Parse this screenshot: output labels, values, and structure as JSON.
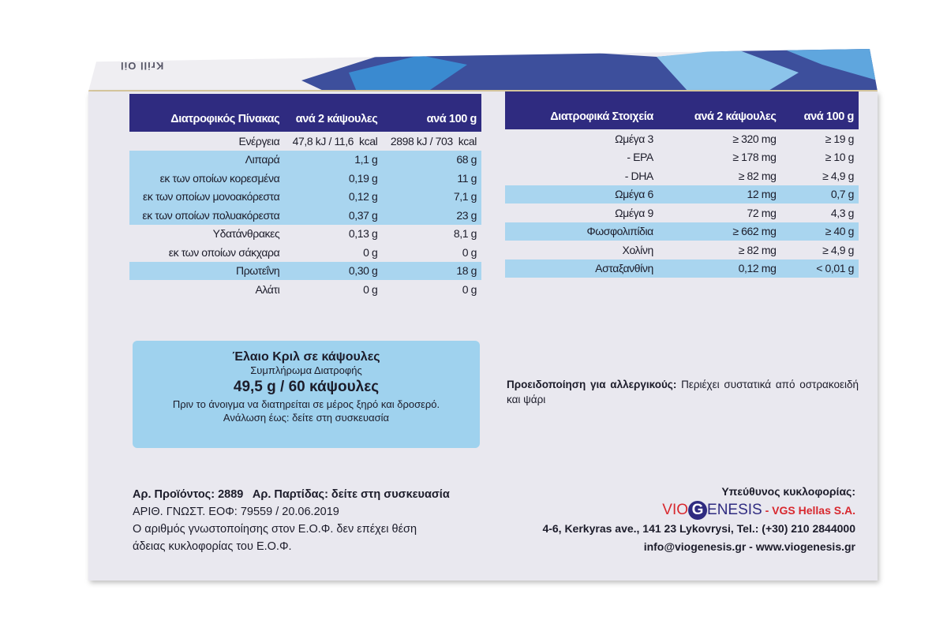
{
  "lid": {
    "brand": "Krill Oil"
  },
  "nutrition": {
    "headers": [
      "Διατροφικός Πίνακας",
      "ανά 2 κάψουλες",
      "ανά 100 g"
    ],
    "rows": [
      {
        "label": "Ενέργεια",
        "per2": "47,8 kJ / 11,6  kcal",
        "per100": "2898 kJ / 703  kcal",
        "hl": false
      },
      {
        "label": "Λιπαρά",
        "per2": "1,1 g",
        "per100": "68 g",
        "hl": true
      },
      {
        "label": "εκ των οποίων κορεσμένα",
        "per2": "0,19 g",
        "per100": "11 g",
        "hl": true
      },
      {
        "label": "εκ των οποίων μονοακόρεστα",
        "per2": "0,12 g",
        "per100": "7,1 g",
        "hl": true
      },
      {
        "label": "εκ των οποίων πολυακόρεστα",
        "per2": "0,37 g",
        "per100": "23 g",
        "hl": true
      },
      {
        "label": "Υδατάνθρακες",
        "per2": "0,13 g",
        "per100": "8,1 g",
        "hl": false
      },
      {
        "label": "εκ των οποίων σάκχαρα",
        "per2": "0 g",
        "per100": "0 g",
        "hl": false
      },
      {
        "label": "Πρωτεΐνη",
        "per2": "0,30 g",
        "per100": "18 g",
        "hl": true
      },
      {
        "label": "Αλάτι",
        "per2": "0 g",
        "per100": "0 g",
        "hl": false
      }
    ]
  },
  "elements": {
    "headers": [
      "Διατροφικά Στοιχεία",
      "ανά 2 κάψουλες",
      "ανά 100 g"
    ],
    "rows": [
      {
        "label": "Ωμέγα 3",
        "per2": "≥ 320 mg",
        "per100": "≥ 19 g",
        "hl": false
      },
      {
        "label": "- EPA",
        "per2": "≥ 178 mg",
        "per100": "≥ 10 g",
        "hl": false
      },
      {
        "label": "- DHA",
        "per2": "≥ 82 mg",
        "per100": "≥ 4,9 g",
        "hl": false
      },
      {
        "label": "Ωμέγα 6",
        "per2": "12 mg",
        "per100": "0,7 g",
        "hl": true
      },
      {
        "label": "Ωμέγα 9",
        "per2": "72 mg",
        "per100": "4,3 g",
        "hl": false
      },
      {
        "label": "Φωσφολιπίδια",
        "per2": "≥ 662 mg",
        "per100": "≥ 40 g",
        "hl": true
      },
      {
        "label": "Χολίνη",
        "per2": "≥ 82 mg",
        "per100": "≥ 4,9 g",
        "hl": false
      },
      {
        "label": "Ασταξανθίνη",
        "per2": "0,12 mg",
        "per100": "< 0,01 g",
        "hl": true
      }
    ]
  },
  "product": {
    "title": "Έλαιο Κριλ σε κάψουλες",
    "subtitle": "Συμπλήρωμα Διατροφής",
    "quantity": "49,5 g / 60 κάψουλες",
    "storage": "Πριν το άνοιγμα να διατηρείται σε μέρος ξηρό και δροσερό.",
    "expiry": "Ανάλωση έως: δείτε στη συσκευασία"
  },
  "allergy": {
    "label": "Προειδοποίηση για αλλεργικούς:",
    "text": "Περιέχει συστατικά από οστρακοειδή και ψάρι"
  },
  "codes": {
    "line1": "Αρ. Προϊόντος: 2889   Αρ. Παρτίδας: δείτε στη συσκευασία",
    "line2": "ΑΡΙΘ. ΓΝΩΣΤ. ΕΟΦ: 79559 / 20.06.2019",
    "line3": "Ο αριθμός γνωστοποίησης στον Ε.Ο.Φ. δεν επέχει θέση",
    "line4": "άδειας κυκλοφορίας του Ε.Ο.Φ."
  },
  "contact": {
    "heading": "Υπεύθυνος κυκλοφορίας:",
    "logo_vio": "VIO",
    "logo_g": "G",
    "logo_rest": "ENESIS",
    "company": "- VGS Hellas S.A.",
    "address": "4-6, Kerkyras ave., 141 23 Lykovrysi, Tel.: (+30) 210 2844000",
    "web": "info@viogenesis.gr - www.viogenesis.gr"
  }
}
